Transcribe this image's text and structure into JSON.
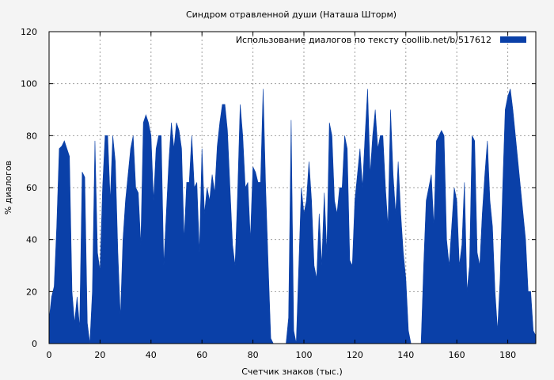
{
  "chart_data": {
    "type": "area",
    "title": "Синдром отравленной души (Наташа Шторм)",
    "xlabel": "Счетчик знаков (тыс.)",
    "ylabel": "% диалогов",
    "xlim": [
      0,
      191
    ],
    "ylim": [
      0,
      120
    ],
    "xticks": [
      0,
      20,
      40,
      60,
      80,
      100,
      120,
      140,
      160,
      180
    ],
    "yticks": [
      0,
      20,
      40,
      60,
      80,
      100,
      120
    ],
    "grid": true,
    "legend_position": "top-right",
    "series": [
      {
        "name": "Использование диалогов по тексту  coollib.net/b/517612",
        "color": "#0a40a8",
        "x": [
          0.0,
          1.0,
          2.0,
          3.0,
          4.0,
          5.0,
          6.0,
          7.0,
          8.0,
          9.0,
          10.0,
          11.0,
          12.0,
          13.0,
          14.0,
          15.0,
          16.0,
          17.0,
          18.0,
          19.0,
          20.0,
          21.0,
          22.0,
          23.0,
          24.0,
          25.0,
          26.0,
          27.0,
          28.0,
          29.0,
          30.0,
          31.0,
          32.0,
          33.0,
          34.0,
          35.0,
          36.0,
          37.0,
          38.0,
          39.0,
          40.0,
          41.0,
          42.0,
          43.0,
          44.0,
          45.0,
          46.0,
          47.0,
          48.0,
          49.0,
          50.0,
          51.0,
          52.0,
          53.0,
          54.0,
          55.0,
          56.0,
          57.0,
          58.0,
          59.0,
          60.0,
          61.0,
          62.0,
          63.0,
          64.0,
          65.0,
          66.0,
          67.0,
          68.0,
          69.0,
          70.0,
          71.0,
          72.0,
          73.0,
          74.0,
          75.0,
          76.0,
          77.0,
          78.0,
          79.0,
          80.0,
          81.0,
          82.0,
          83.0,
          84.0,
          85.0,
          86.0,
          87.0,
          88.0,
          89.0,
          90.0,
          91.0,
          92.0,
          93.0,
          94.0,
          95.0,
          96.0,
          97.0,
          98.0,
          99.0,
          100.0,
          101.0,
          102.0,
          103.0,
          104.0,
          105.0,
          106.0,
          107.0,
          108.0,
          109.0,
          110.0,
          111.0,
          112.0,
          113.0,
          114.0,
          115.0,
          116.0,
          117.0,
          118.0,
          119.0,
          120.0,
          121.0,
          122.0,
          123.0,
          124.0,
          125.0,
          126.0,
          127.0,
          128.0,
          129.0,
          130.0,
          131.0,
          132.0,
          133.0,
          134.0,
          135.0,
          136.0,
          137.0,
          138.0,
          139.0,
          140.0,
          141.0,
          142.0,
          143.0,
          144.0,
          145.0,
          146.0,
          147.0,
          148.0,
          149.0,
          150.0,
          151.0,
          152.0,
          153.0,
          154.0,
          155.0,
          156.0,
          157.0,
          158.0,
          159.0,
          160.0,
          161.0,
          162.0,
          163.0,
          164.0,
          165.0,
          166.0,
          167.0,
          168.0,
          169.0,
          170.0,
          171.0,
          172.0,
          173.0,
          174.0,
          175.0,
          176.0,
          177.0,
          178.0,
          179.0,
          180.0,
          181.0,
          182.0,
          183.0,
          184.0,
          185.0,
          186.0,
          187.0,
          188.0,
          189.0,
          190.0,
          191.0
        ],
        "values": [
          9,
          18,
          22,
          45,
          75,
          76,
          78,
          75,
          72,
          20,
          8,
          18,
          6,
          66,
          64,
          8,
          0,
          20,
          78,
          35,
          28,
          60,
          80,
          80,
          55,
          80,
          70,
          35,
          10,
          40,
          55,
          65,
          75,
          80,
          60,
          58,
          38,
          85,
          88,
          85,
          80,
          55,
          75,
          80,
          80,
          30,
          50,
          70,
          85,
          75,
          85,
          82,
          75,
          40,
          62,
          62,
          80,
          60,
          62,
          35,
          75,
          50,
          60,
          55,
          65,
          58,
          76,
          85,
          92,
          92,
          82,
          60,
          38,
          30,
          58,
          92,
          80,
          60,
          62,
          40,
          68,
          66,
          62,
          62,
          98,
          60,
          30,
          2,
          0,
          0,
          0,
          0,
          0,
          0,
          10,
          86,
          5,
          0,
          30,
          60,
          50,
          55,
          70,
          55,
          30,
          25,
          50,
          30,
          58,
          35,
          85,
          80,
          55,
          50,
          60,
          60,
          80,
          75,
          32,
          30,
          55,
          65,
          75,
          60,
          80,
          98,
          65,
          80,
          90,
          75,
          80,
          80,
          60,
          45,
          90,
          65,
          50,
          70,
          50,
          35,
          25,
          5,
          0,
          0,
          0,
          0,
          0,
          30,
          55,
          60,
          65,
          45,
          78,
          80,
          82,
          80,
          40,
          30,
          45,
          60,
          55,
          30,
          38,
          62,
          20,
          30,
          80,
          78,
          35,
          30,
          50,
          65,
          78,
          55,
          45,
          20,
          5,
          25,
          60,
          90,
          95,
          98,
          90,
          80,
          70,
          60,
          50,
          40,
          20,
          20,
          5,
          3
        ]
      }
    ]
  }
}
